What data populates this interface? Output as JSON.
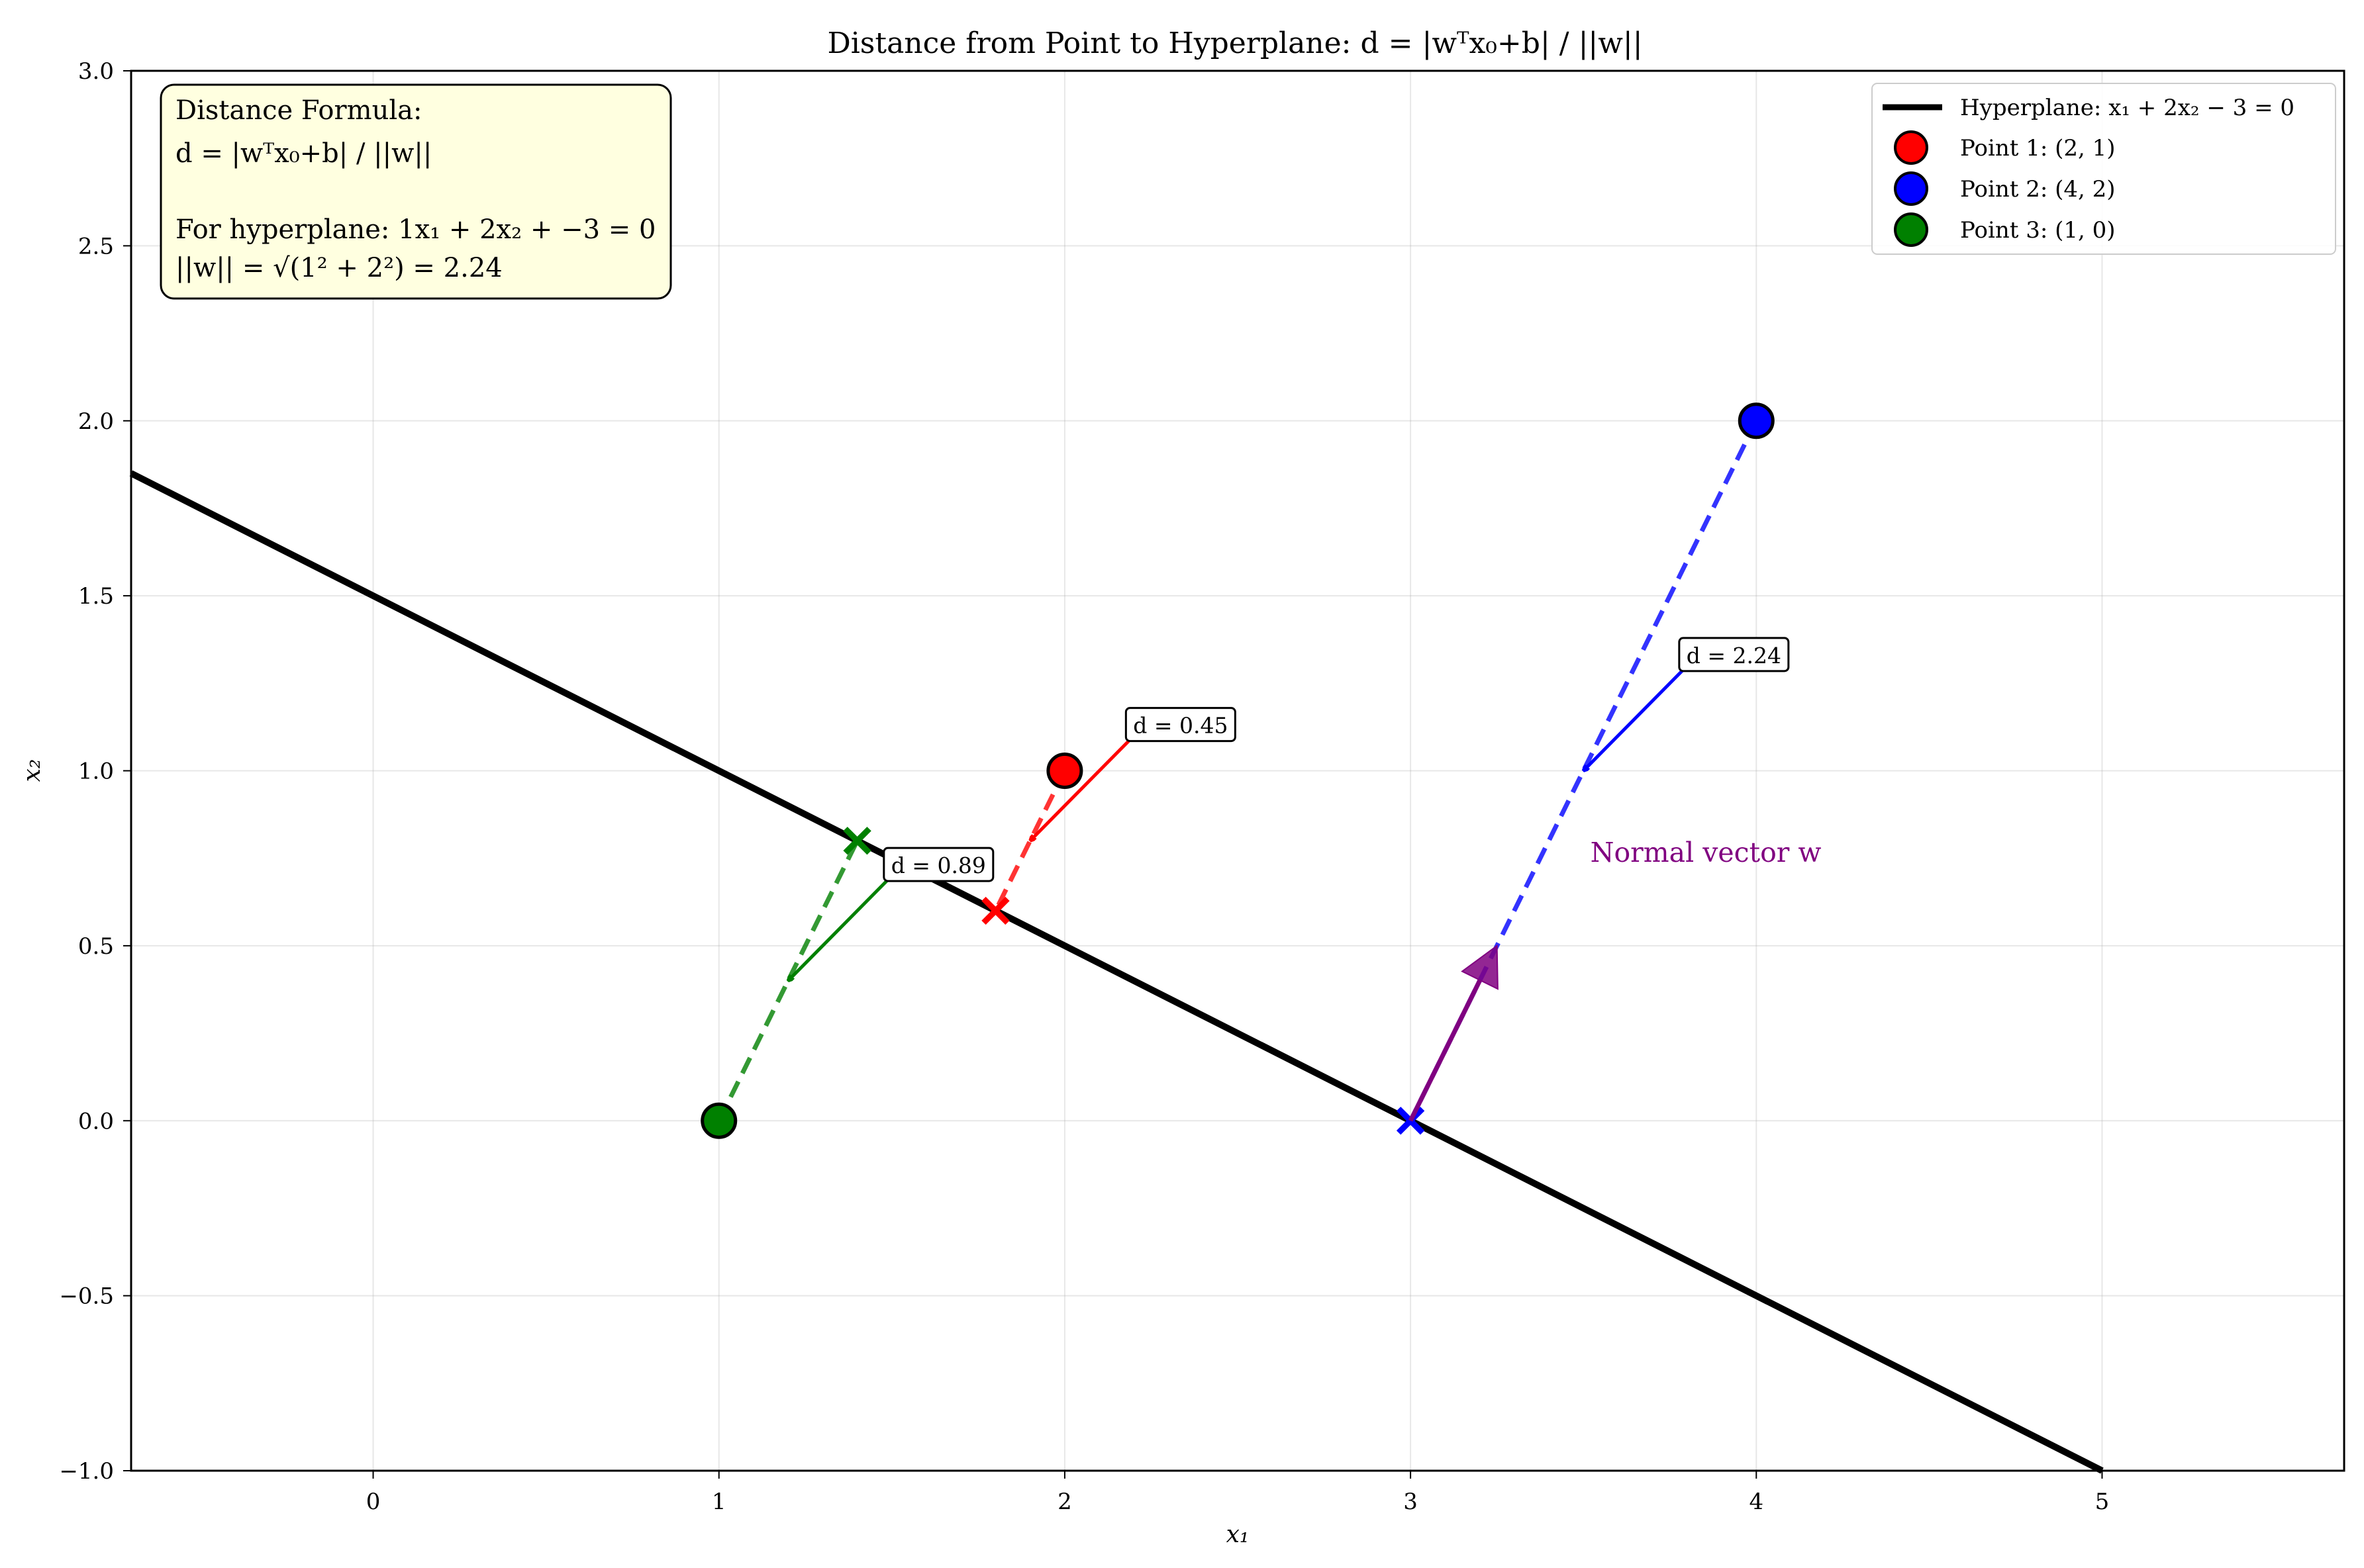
{
  "chart_data": {
    "type": "scatter",
    "title": "Distance from Point to Hyperplane: d = |wᵀx₀+b| / ||w||",
    "xlabel": "x₁",
    "ylabel": "x₂",
    "xlim": [
      -0.7,
      5.7
    ],
    "ylim": [
      -1.0,
      3.0
    ],
    "x_ticks": [
      0,
      1,
      2,
      3,
      4,
      5
    ],
    "y_ticks": [
      -1.0,
      -0.5,
      0.0,
      0.5,
      1.0,
      1.5,
      2.0,
      2.5,
      3.0
    ],
    "x_tick_labels": [
      "0",
      "1",
      "2",
      "3",
      "4",
      "5"
    ],
    "y_tick_labels": [
      "−1.0",
      "−0.5",
      "0.0",
      "0.5",
      "1.0",
      "1.5",
      "2.0",
      "2.5",
      "3.0"
    ],
    "grid": true,
    "legend_position": "top-right",
    "hyperplane": {
      "w": [
        1,
        2
      ],
      "b": -3,
      "label": "Hyperplane: x₁ + 2x₂ − 3 = 0",
      "color": "#000000"
    },
    "points": [
      {
        "label": "Point 1: (2, 1)",
        "x": 2,
        "y": 1,
        "color": "#ff0000",
        "projection": [
          1.8,
          0.6
        ],
        "distance_label": "d = 0.45",
        "label_at": [
          2.2,
          1.1
        ],
        "arrow_to": [
          1.9,
          0.8
        ]
      },
      {
        "label": "Point 2: (4, 2)",
        "x": 4,
        "y": 2,
        "color": "#0000ff",
        "projection": [
          3.0,
          0.0
        ],
        "distance_label": "d = 2.24",
        "label_at": [
          3.8,
          1.3
        ],
        "arrow_to": [
          3.5,
          1.0
        ]
      },
      {
        "label": "Point 3: (1, 0)",
        "x": 1,
        "y": 0,
        "color": "#008000",
        "projection": [
          1.4,
          0.8
        ],
        "distance_label": "d = 0.89",
        "label_at": [
          1.5,
          0.7
        ],
        "arrow_to": [
          1.2,
          0.4
        ]
      }
    ],
    "normal_vector": {
      "origin": [
        3.0,
        0.0
      ],
      "tip": [
        3.25,
        0.5
      ],
      "label": "Normal vector w",
      "color": "#800080"
    },
    "info_box": {
      "lines": [
        "Distance Formula:",
        "d = |wᵀx₀+b| / ||w||",
        "",
        "For hyperplane: 1x₁ + 2x₂ + −3 = 0",
        "||w|| = √(1² + 2²) = 2.24"
      ],
      "background": "#ffffe0"
    }
  }
}
